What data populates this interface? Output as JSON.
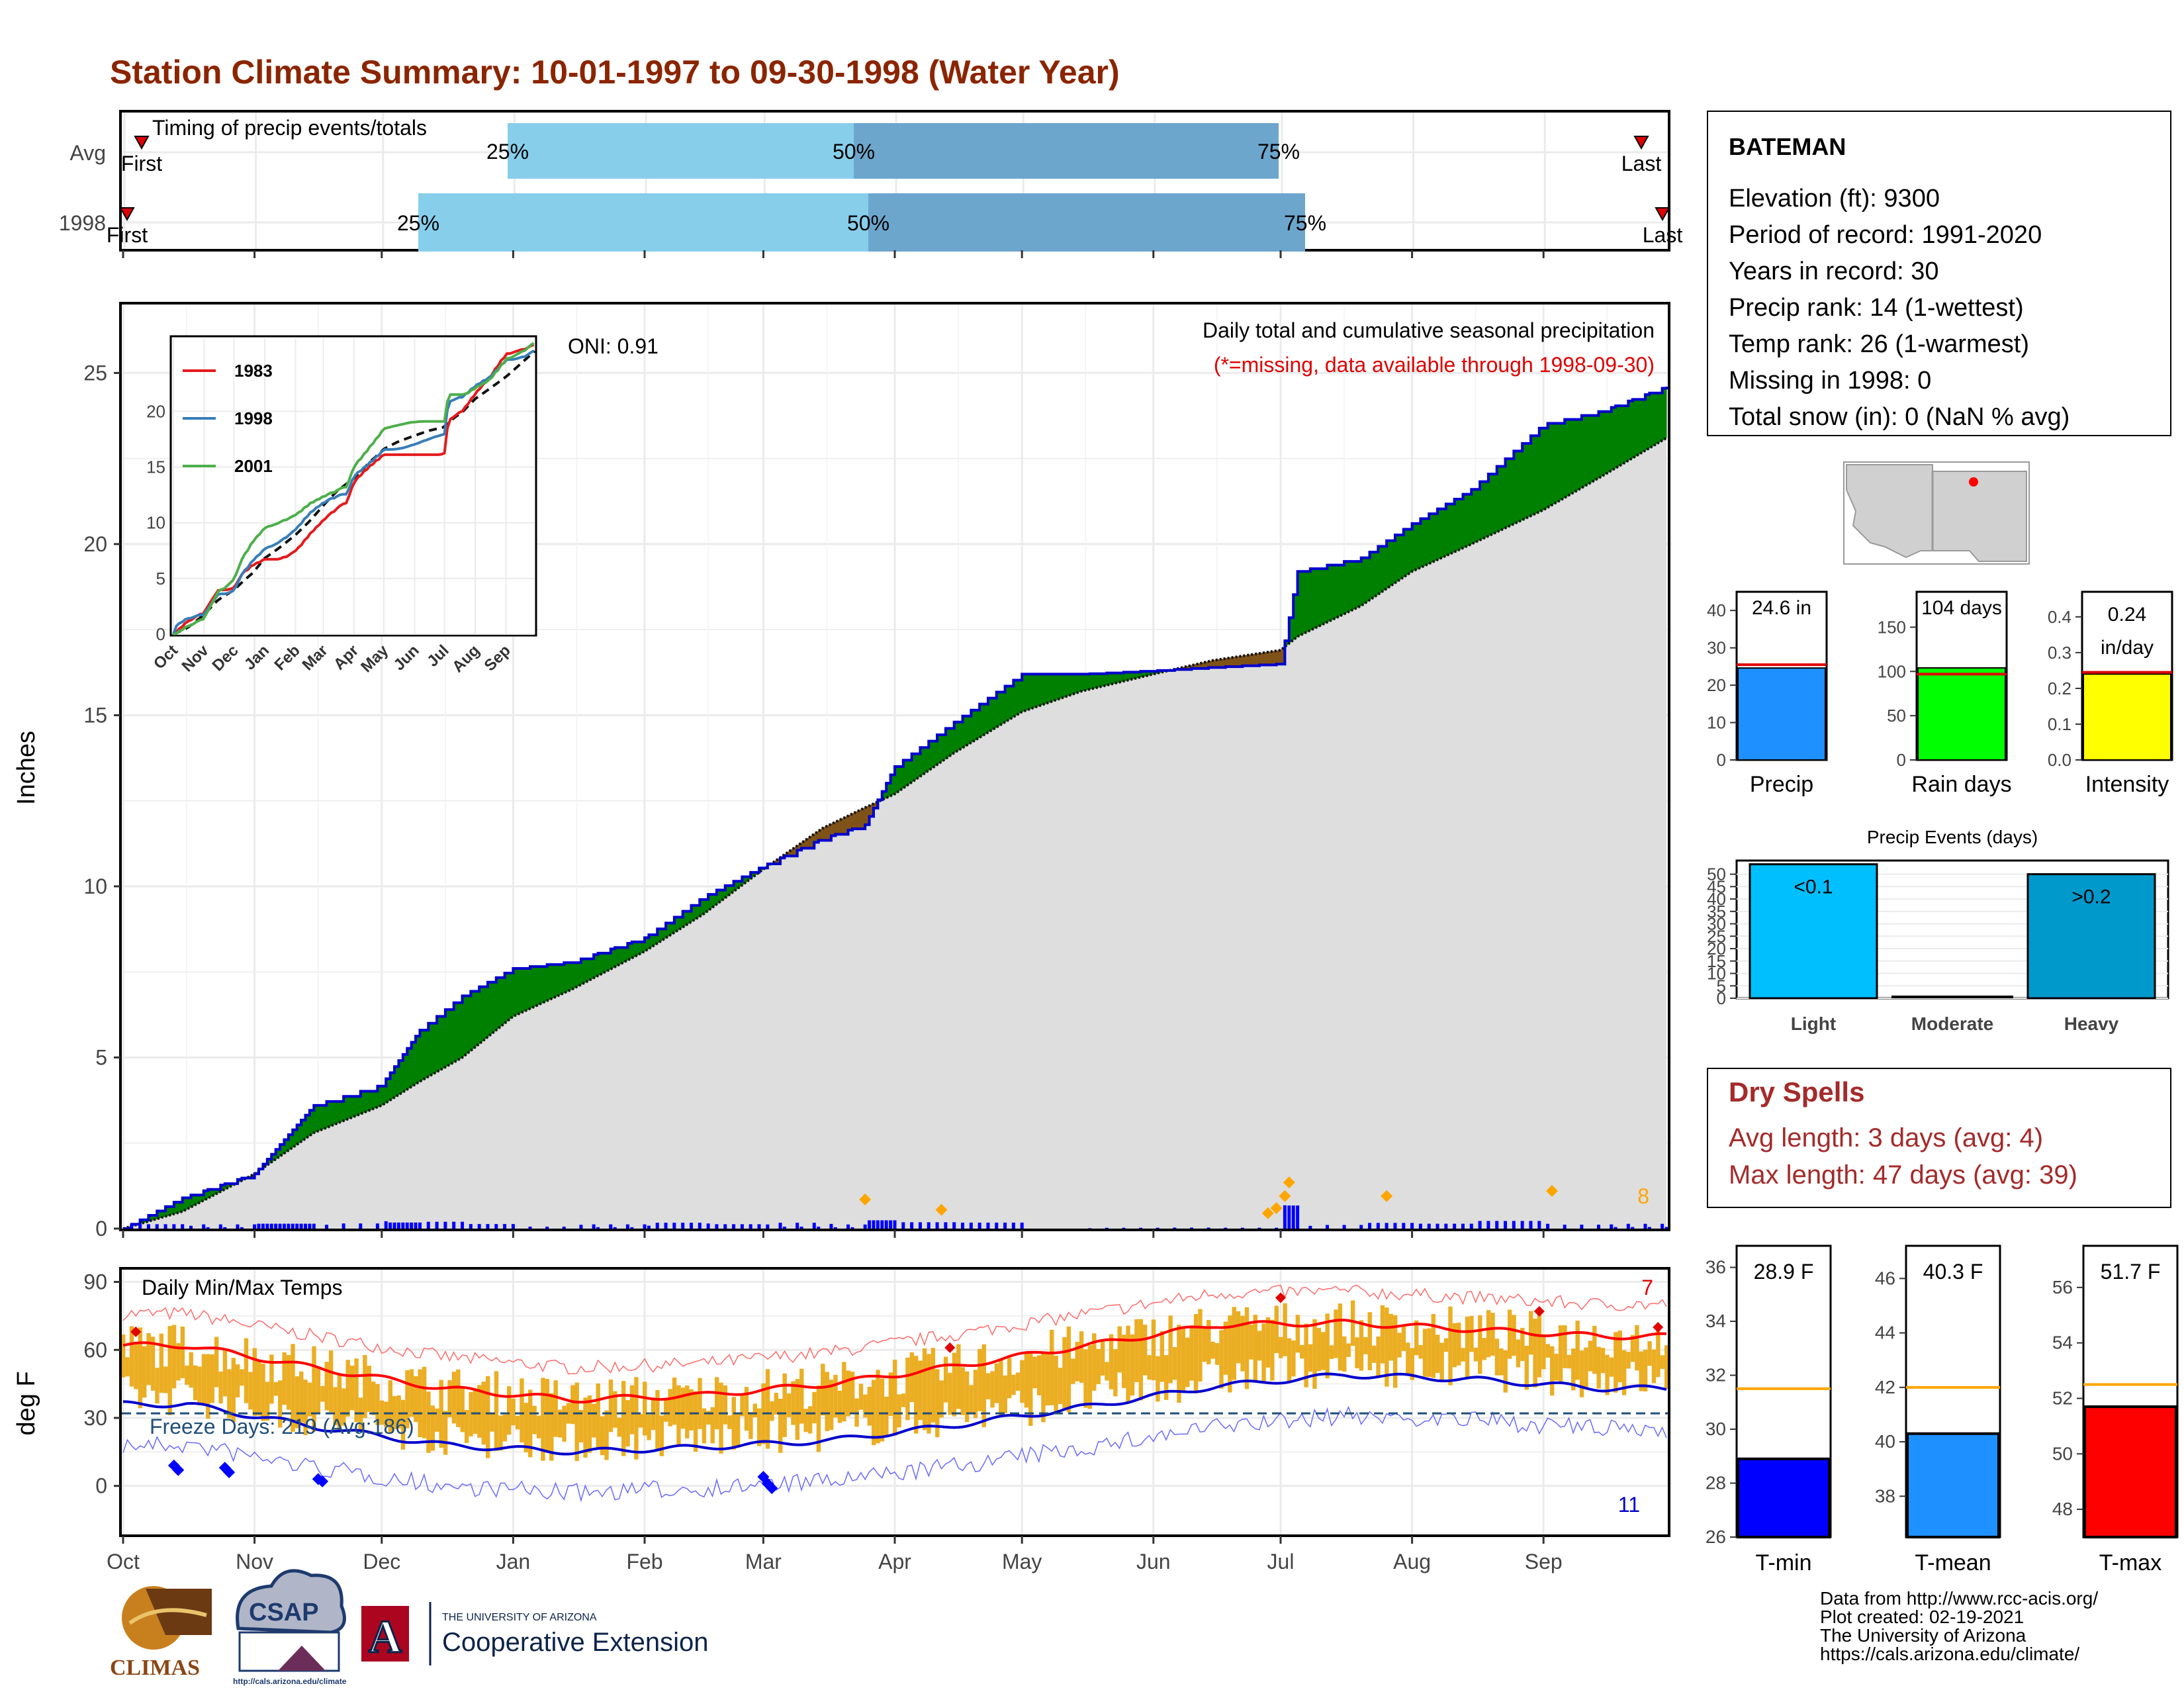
{
  "title": "Station Climate Summary: 10-01-1997 to 09-30-1998 (Water Year)",
  "colors": {
    "title": "#8B2500",
    "above_avg": "#008000",
    "below_avg": "#7F5217",
    "daily_bar": "#0000FF",
    "cum_line": "#0000CD",
    "avg_fill": "#DEDEDE",
    "pct_light": "#87CEEB",
    "pct_dark": "#6CA6CD",
    "marker_red": "#E00000",
    "temp_band": "#EBAE23",
    "tmax_line": "#FF0000",
    "tmin_line": "#0000CD",
    "dry_spell": "#A52A2A",
    "freeze_line": "#1F4E79",
    "extreme_orange": "#FFA500"
  },
  "timing_panel": {
    "title": "Timing of precip events/totals",
    "rows": [
      {
        "label": "Avg",
        "first": "First",
        "last": "Last",
        "p25": "25%",
        "p50": "50%",
        "p75": "75%"
      },
      {
        "label": "1998",
        "first": "First",
        "last": "Last",
        "p25": "25%",
        "p50": "50%",
        "p75": "75%"
      }
    ]
  },
  "precip_panel": {
    "ylabel": "Inches",
    "oni": "ONI: 0.91",
    "subtitle": "Daily total and cumulative seasonal precipitation",
    "missing_note": "(*=missing, data available through 1998-09-30)",
    "extreme_count": "8",
    "yticks": [
      "0",
      "5",
      "10",
      "15",
      "20",
      "25"
    ]
  },
  "inset": {
    "legend": [
      "1983",
      "1998",
      "2001"
    ],
    "legend_colors": [
      "#E41A1C",
      "#377EB8",
      "#4DAF4A"
    ],
    "yticks": [
      "0",
      "5",
      "10",
      "15",
      "20"
    ],
    "xticks": [
      "Oct",
      "Nov",
      "Dec",
      "Jan",
      "Feb",
      "Mar",
      "Apr",
      "May",
      "Jun",
      "Jul",
      "Aug",
      "Sep"
    ]
  },
  "temp_panel": {
    "title": "Daily Min/Max Temps",
    "ylabel": "deg F",
    "freeze": "Freeze Days: 219 (Avg:186)",
    "hot_count": "7",
    "cold_count": "11",
    "yticks": [
      "0",
      "30",
      "60",
      "90"
    ]
  },
  "months": [
    "Oct",
    "Nov",
    "Dec",
    "Jan",
    "Feb",
    "Mar",
    "Apr",
    "May",
    "Jun",
    "Jul",
    "Aug",
    "Sep"
  ],
  "station": {
    "name": "BATEMAN",
    "lines": [
      "Elevation (ft): 9300",
      "Period of record: 1991-2020",
      "Years in record: 30",
      "Precip rank: 14 (1-wettest)",
      "Temp rank: 26 (1-warmest)",
      "Missing in 1998: 0",
      "Total snow (in): 0 (NaN % avg)"
    ]
  },
  "summary_bars": [
    {
      "label": "Precip",
      "value_text": "24.6 in",
      "value": 24.6,
      "avg": 25.5,
      "ymax": 45,
      "yticks": [
        "0",
        "10",
        "20",
        "30",
        "40"
      ],
      "color": "#1E90FF"
    },
    {
      "label": "Rain days",
      "value_text": "104 days",
      "value": 104,
      "avg": 97,
      "ymax": 190,
      "yticks": [
        "0",
        "50",
        "100",
        "150"
      ],
      "color": "#00FF00"
    },
    {
      "label": "Intensity",
      "value_text": "0.24 in/day",
      "value_line1": "0.24",
      "value_line2": "in/day",
      "value": 0.24,
      "avg": 0.245,
      "ymax": 0.47,
      "yticks": [
        "0.0",
        "0.1",
        "0.2",
        "0.3",
        "0.4"
      ],
      "color": "#FFFF00"
    }
  ],
  "events_chart": {
    "title": "Precip Events (days)",
    "categories": [
      "Light",
      "Moderate",
      "Heavy"
    ],
    "labels": [
      "<0.1",
      "",
      ">0.2"
    ],
    "values": [
      54,
      0,
      50
    ],
    "yticks": [
      "0",
      "5",
      "10",
      "15",
      "20",
      "25",
      "30",
      "35",
      "40",
      "45",
      "50"
    ],
    "colors": [
      "#00BFFF",
      "#0000FF",
      "#0099CC"
    ]
  },
  "dry_spells": {
    "title": "Dry Spells",
    "avg_line": "Avg length: 3 days (avg: 4)",
    "max_line": "Max length: 47 days (avg: 39)"
  },
  "temp_summary": [
    {
      "label": "T-min",
      "value_text": "28.9 F",
      "value": 28.9,
      "avg": 31.5,
      "ymin": 26,
      "ymax": 36.8,
      "yticks": [
        "26",
        "28",
        "30",
        "32",
        "34",
        "36"
      ],
      "color": "#0000FF"
    },
    {
      "label": "T-mean",
      "value_text": "40.3 F",
      "value": 40.3,
      "avg": 42.0,
      "ymin": 36.5,
      "ymax": 47.2,
      "yticks": [
        "38",
        "40",
        "42",
        "44",
        "46"
      ],
      "color": "#1E90FF"
    },
    {
      "label": "T-max",
      "value_text": "51.7 F",
      "value": 51.7,
      "avg": 52.5,
      "ymin": 47,
      "ymax": 57.5,
      "yticks": [
        "48",
        "50",
        "52",
        "54",
        "56"
      ],
      "color": "#FF0000"
    }
  ],
  "credits": [
    "Data from http://www.rcc-acis.org/",
    "Plot created: 02-19-2021",
    "The University of Arizona",
    "https://cals.arizona.edu/climate/"
  ],
  "logos": {
    "climas": "CLIMAS",
    "csap": "CSAP",
    "csap_url": "http://cals.arizona.edu/climate",
    "ua_letter": "A",
    "ua_small": "THE UNIVERSITY OF ARIZONA",
    "ua_big": "Cooperative Extension"
  },
  "chart_data": [
    {
      "type": "area",
      "title": "Daily total and cumulative seasonal precipitation",
      "ylabel": "Inches",
      "ylim": [
        0,
        27
      ],
      "x": [
        "Oct 1",
        "Oct 15",
        "Nov 1",
        "Nov 15",
        "Dec 1",
        "Dec 10",
        "Dec 20",
        "Jan 1",
        "Jan 15",
        "Feb 1",
        "Feb 15",
        "Mar 1",
        "Mar 15",
        "Mar 25",
        "Apr 1",
        "Apr 15",
        "May 1",
        "May 15",
        "Jun 1",
        "Jun 15",
        "Jul 1",
        "Jul 5",
        "Jul 20",
        "Aug 1",
        "Aug 15",
        "Sep 1",
        "Sep 15",
        "Sep 30"
      ],
      "series": [
        {
          "name": "1998",
          "values": [
            0,
            0.9,
            1.6,
            3.6,
            4.2,
            5.8,
            6.8,
            7.6,
            7.8,
            8.5,
            9.7,
            10.6,
            11.4,
            11.8,
            13.5,
            14.8,
            16.2,
            16.2,
            16.3,
            16.4,
            16.5,
            19.2,
            19.6,
            20.6,
            21.6,
            23.5,
            23.9,
            24.6
          ]
        },
        {
          "name": "Avg",
          "values": [
            0,
            0.5,
            1.6,
            2.8,
            3.6,
            4.3,
            5.0,
            6.2,
            7.0,
            8.1,
            9.2,
            10.5,
            11.7,
            12.3,
            12.7,
            13.9,
            15.1,
            15.7,
            16.2,
            16.6,
            16.9,
            17.3,
            18.2,
            19.2,
            20.0,
            21.0,
            22.0,
            23.1
          ]
        }
      ]
    },
    {
      "type": "line",
      "title": "Daily Min/Max Temps",
      "ylabel": "deg F",
      "ylim": [
        -20,
        95
      ],
      "x": [
        "Oct",
        "Nov",
        "Dec",
        "Jan",
        "Feb",
        "Mar",
        "Apr",
        "May",
        "Jun",
        "Jul",
        "Aug",
        "Sep"
      ],
      "series": [
        {
          "name": "Avg max",
          "values": [
            62,
            52,
            43,
            38,
            40,
            45,
            53,
            62,
            71,
            72,
            69,
            66
          ]
        },
        {
          "name": "Avg min",
          "values": [
            36,
            26,
            18,
            15,
            17,
            20,
            27,
            35,
            44,
            49,
            47,
            43
          ]
        }
      ]
    }
  ]
}
